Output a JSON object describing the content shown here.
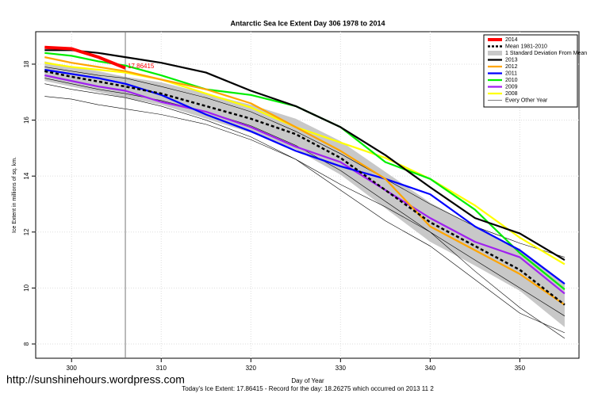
{
  "chart_data": {
    "type": "line",
    "title": "Antarctic Sea Ice Extent Day 306 1978 to 2014",
    "x_label": "Day of Year",
    "y_label": "Ice Extent in millions of sq. km.",
    "footer": "Today's Ice Extent: 17.86415  - Record for the day: 18.26275 which occurred on 2013 11 2",
    "watermark": "http://sunshinehours.wordpress.com",
    "annotation": "17.86415",
    "vline": 306,
    "xlim": [
      296,
      356.6
    ],
    "ylim": [
      7.49,
      19.16
    ],
    "xticks": [
      300,
      310,
      320,
      330,
      340,
      350
    ],
    "yticks": [
      8,
      10,
      12,
      14,
      16,
      18
    ],
    "grid": true,
    "legend": "top-right",
    "x": [
      297,
      300,
      303,
      306,
      310,
      315,
      320,
      325,
      330,
      335,
      340,
      345,
      350,
      355
    ],
    "band": {
      "name": "1 Standard Deviation From Mean",
      "color": "#c8c8c8",
      "upper": [
        18.1,
        17.9,
        17.75,
        17.55,
        17.35,
        16.95,
        16.55,
        16.05,
        15.25,
        14.15,
        13.05,
        12.2,
        11.4,
        10.2
      ],
      "lower": [
        17.4,
        17.2,
        17.0,
        16.8,
        16.55,
        16.05,
        15.55,
        14.95,
        14.05,
        12.85,
        11.65,
        10.8,
        9.9,
        8.6
      ]
    },
    "other_years": {
      "name": "Every Other Year",
      "color": "#000000",
      "lines": [
        [
          16.85,
          16.75,
          16.55,
          16.4,
          16.2,
          15.85,
          15.3,
          14.6,
          13.7,
          12.9,
          12.0,
          10.6,
          9.3,
          8.2
        ],
        [
          17.5,
          17.3,
          17.1,
          16.95,
          16.7,
          16.3,
          15.8,
          15.1,
          14.2,
          13.1,
          12.0,
          11.0,
          10.0,
          9.0
        ],
        [
          17.9,
          17.75,
          17.6,
          17.5,
          17.2,
          16.8,
          16.3,
          15.6,
          14.8,
          13.9,
          13.0,
          12.2,
          11.6,
          11.1
        ],
        [
          17.3,
          17.1,
          16.95,
          16.8,
          16.5,
          16.0,
          15.4,
          14.6,
          13.5,
          12.4,
          11.5,
          10.3,
          9.1,
          8.4
        ]
      ]
    },
    "series": [
      {
        "name": "2014",
        "color": "#ff0000",
        "values": [
          18.6,
          18.55,
          18.25,
          17.86,
          null,
          null,
          null,
          null,
          null,
          null,
          null,
          null,
          null,
          null
        ]
      },
      {
        "name": "Mean 1981-2010",
        "color": "#000000",
        "dashed": true,
        "values": [
          17.75,
          17.55,
          17.38,
          17.2,
          16.95,
          16.5,
          16.05,
          15.5,
          14.65,
          13.5,
          12.35,
          11.5,
          10.65,
          9.4
        ]
      },
      {
        "name": "2013",
        "color": "#000000",
        "values": [
          18.5,
          18.5,
          18.4,
          18.25,
          18.05,
          17.7,
          17.05,
          16.5,
          15.75,
          14.75,
          13.6,
          12.5,
          11.95,
          11.0
        ]
      },
      {
        "name": "2012",
        "color": "#ffa500",
        "values": [
          18.25,
          18.05,
          17.9,
          17.75,
          17.45,
          17.1,
          16.6,
          15.75,
          14.9,
          13.9,
          12.2,
          11.35,
          10.5,
          9.4
        ]
      },
      {
        "name": "2011",
        "color": "#0000ff",
        "values": [
          17.8,
          17.65,
          17.5,
          17.3,
          16.9,
          16.2,
          15.6,
          14.9,
          14.35,
          13.9,
          13.35,
          12.2,
          11.35,
          10.15
        ]
      },
      {
        "name": "2010",
        "color": "#00ee00",
        "values": [
          18.4,
          18.3,
          18.1,
          17.95,
          17.6,
          17.1,
          16.9,
          16.5,
          15.75,
          14.5,
          13.9,
          12.8,
          11.25,
          9.95
        ]
      },
      {
        "name": "2009",
        "color": "#a020f0",
        "values": [
          17.6,
          17.4,
          17.2,
          17.05,
          16.65,
          16.3,
          15.75,
          15.05,
          14.5,
          13.5,
          12.5,
          11.65,
          11.1,
          9.8
        ]
      },
      {
        "name": "2008",
        "color": "#ffff00",
        "values": [
          18.05,
          17.9,
          17.8,
          17.7,
          17.45,
          16.95,
          16.45,
          15.75,
          15.2,
          14.65,
          13.9,
          12.95,
          11.8,
          10.85
        ]
      }
    ]
  }
}
